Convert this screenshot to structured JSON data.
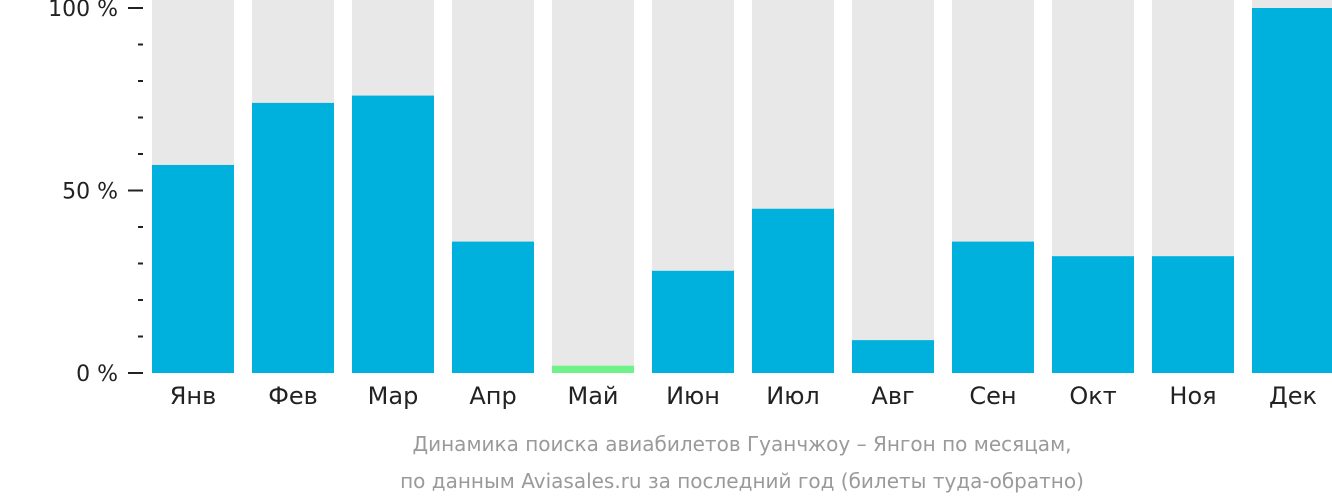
{
  "chart_data": {
    "type": "bar",
    "categories": [
      "Янв",
      "Фев",
      "Мар",
      "Апр",
      "Май",
      "Июн",
      "Июл",
      "Авг",
      "Сен",
      "Окт",
      "Ноя",
      "Дек"
    ],
    "values": [
      57,
      74,
      76,
      36,
      2,
      28,
      45,
      9,
      36,
      32,
      32,
      100
    ],
    "highlight_index": 4,
    "ylim": [
      0,
      100
    ],
    "y_ticks": [
      {
        "value": 0,
        "label": "0 %"
      },
      {
        "value": 50,
        "label": "50 %"
      },
      {
        "value": 100,
        "label": "100 %"
      }
    ],
    "minor_ticks": [
      10,
      20,
      30,
      40,
      60,
      70,
      80,
      90
    ],
    "colors": {
      "bar": "#00b0dd",
      "highlight": "#6ff28a",
      "background_bar": "#e8e8e8"
    },
    "caption": {
      "line1": "Динамика поиска авиабилетов Гуанчжоу – Янгон по месяцам,",
      "line2": "по данным Aviasales.ru за последний год (билеты туда-обратно)"
    }
  }
}
